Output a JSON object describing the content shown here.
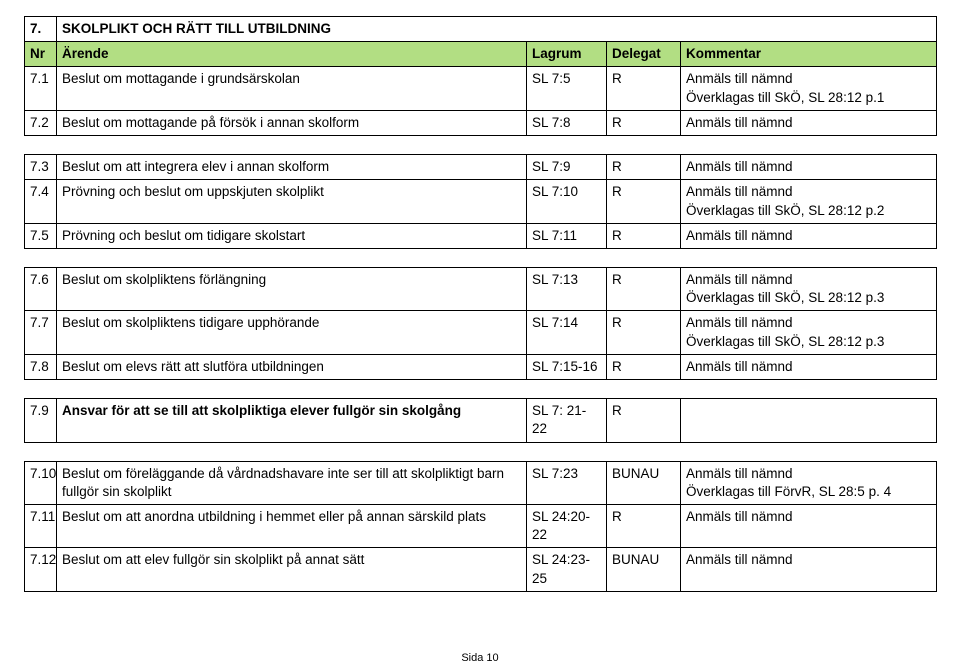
{
  "section": {
    "number": "7.",
    "title": "SKOLPLIKT OCH RÄTT TILL UTBILDNING"
  },
  "headers": {
    "nr": "Nr",
    "arende": "Ärende",
    "lagrum": "Lagrum",
    "delegat": "Delegat",
    "kommentar": "Kommentar"
  },
  "rows": {
    "r1": {
      "nr": "7.1",
      "arende": "Beslut om mottagande i grundsärskolan",
      "lagrum": "SL 7:5",
      "delegat": "R",
      "k1": "Anmäls till nämnd",
      "k2": "Överklagas till SkÖ, SL 28:12 p.1"
    },
    "r2": {
      "nr": "7.2",
      "arende": "Beslut om mottagande på försök i annan skolform",
      "lagrum": "SL 7:8",
      "delegat": "R",
      "k1": "Anmäls till nämnd"
    },
    "r3": {
      "nr": "7.3",
      "arende": "Beslut om att integrera elev i annan skolform",
      "lagrum": "SL 7:9",
      "delegat": "R",
      "k1": "Anmäls till nämnd"
    },
    "r4": {
      "nr": "7.4",
      "arende": "Prövning och beslut om uppskjuten skolplikt",
      "lagrum": "SL 7:10",
      "delegat": "R",
      "k1": "Anmäls till nämnd",
      "k2": "Överklagas till SkÖ, SL 28:12 p.2"
    },
    "r5": {
      "nr": "7.5",
      "arende": "Prövning och beslut om tidigare skolstart",
      "lagrum": "SL 7:11",
      "delegat": "R",
      "k1": "Anmäls till nämnd"
    },
    "r6": {
      "nr": "7.6",
      "arende": "Beslut om skolpliktens förlängning",
      "lagrum": "SL 7:13",
      "delegat": "R",
      "k1": "Anmäls till nämnd",
      "k2": "Överklagas till SkÖ, SL 28:12 p.3"
    },
    "r7": {
      "nr": "7.7",
      "arende": "Beslut om skolpliktens tidigare upphörande",
      "lagrum": "SL 7:14",
      "delegat": "R",
      "k1": "Anmäls till nämnd",
      "k2": "Överklagas till SkÖ, SL 28:12 p.3"
    },
    "r8": {
      "nr": "7.8",
      "arende": "Beslut om elevs rätt att slutföra utbildningen",
      "lagrum": "SL 7:15-16",
      "delegat": "R",
      "k1": "Anmäls till nämnd"
    },
    "r9": {
      "nr": "7.9",
      "arende": "Ansvar för att se till att skolpliktiga elever fullgör sin skolgång",
      "lagrum": "SL 7: 21-22",
      "delegat": "R",
      "k1": ""
    },
    "r10": {
      "nr": "7.10",
      "arende": "Beslut om föreläggande då vårdnadshavare inte ser till att skolpliktigt barn fullgör sin skolplikt",
      "lagrum": "SL 7:23",
      "delegat": "BUNAU",
      "k1": "Anmäls till nämnd",
      "k2": "Överklagas till FörvR, SL 28:5 p. 4"
    },
    "r11": {
      "nr": "7.11",
      "arende": "Beslut om att anordna utbildning i hemmet eller på annan särskild plats",
      "lagrum": "SL 24:20-22",
      "delegat": "R",
      "k1": "Anmäls till nämnd"
    },
    "r12": {
      "nr": "7.12",
      "arende": "Beslut om att elev fullgör sin skolplikt på annat sätt",
      "lagrum": "SL 24:23-25",
      "delegat": "BUNAU",
      "k1": "Anmäls till nämnd"
    }
  },
  "footer": "Sida 10"
}
